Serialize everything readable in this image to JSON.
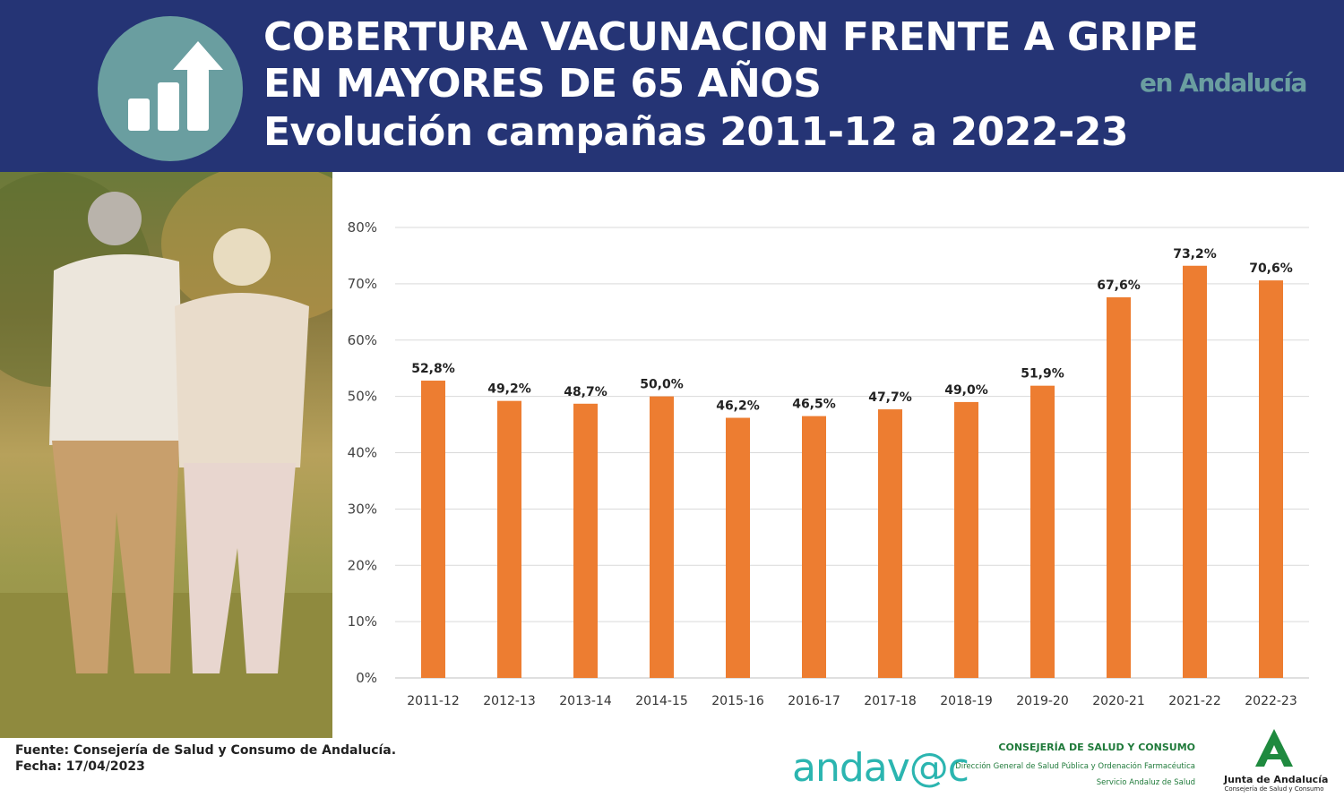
{
  "header": {
    "title_line1": "COBERTURA VACUNACION FRENTE A GRIPE",
    "title_line2": "EN MAYORES DE 65 AÑOS",
    "title_line3": "Evolución campañas 2011-12 a 2022-23",
    "region": "en Andalucía",
    "icon": "bar-chart-up-arrow-icon"
  },
  "colors": {
    "header_bg": "#253475",
    "accent_teal": "#6a9ea0",
    "bar": "#ed7d31"
  },
  "chart_data": {
    "type": "bar",
    "categories": [
      "2011-12",
      "2012-13",
      "2013-14",
      "2014-15",
      "2015-16",
      "2016-17",
      "2017-18",
      "2018-19",
      "2019-20",
      "2020-21",
      "2021-22",
      "2022-23"
    ],
    "values": [
      52.8,
      49.2,
      48.7,
      50.0,
      46.2,
      46.5,
      47.7,
      49.0,
      51.9,
      67.6,
      73.2,
      70.6
    ],
    "value_labels": [
      "52,8%",
      "49,2%",
      "48,7%",
      "50,0%",
      "46,2%",
      "46,5%",
      "47,7%",
      "49,0%",
      "51,9%",
      "67,6%",
      "73,2%",
      "70,6%"
    ],
    "ylim": [
      0,
      80
    ],
    "yticks": [
      "0%",
      "10%",
      "20%",
      "30%",
      "40%",
      "50%",
      "60%",
      "70%",
      "80%"
    ],
    "grid": true
  },
  "footer": {
    "source": "Fuente: Consejería de Salud y Consumo de Andalucía.",
    "date": "Fecha: 17/04/2023",
    "andavac_logo": "andav@c",
    "consejeria_title": "CONSEJERÍA DE SALUD Y CONSUMO",
    "consejeria_line2": "Dirección General de Salud Pública y Ordenación Farmacéutica",
    "consejeria_line3": "Servicio Andaluz de Salud",
    "junta_name": "Junta de Andalucía",
    "junta_sub": "Consejería de Salud y Consumo"
  }
}
